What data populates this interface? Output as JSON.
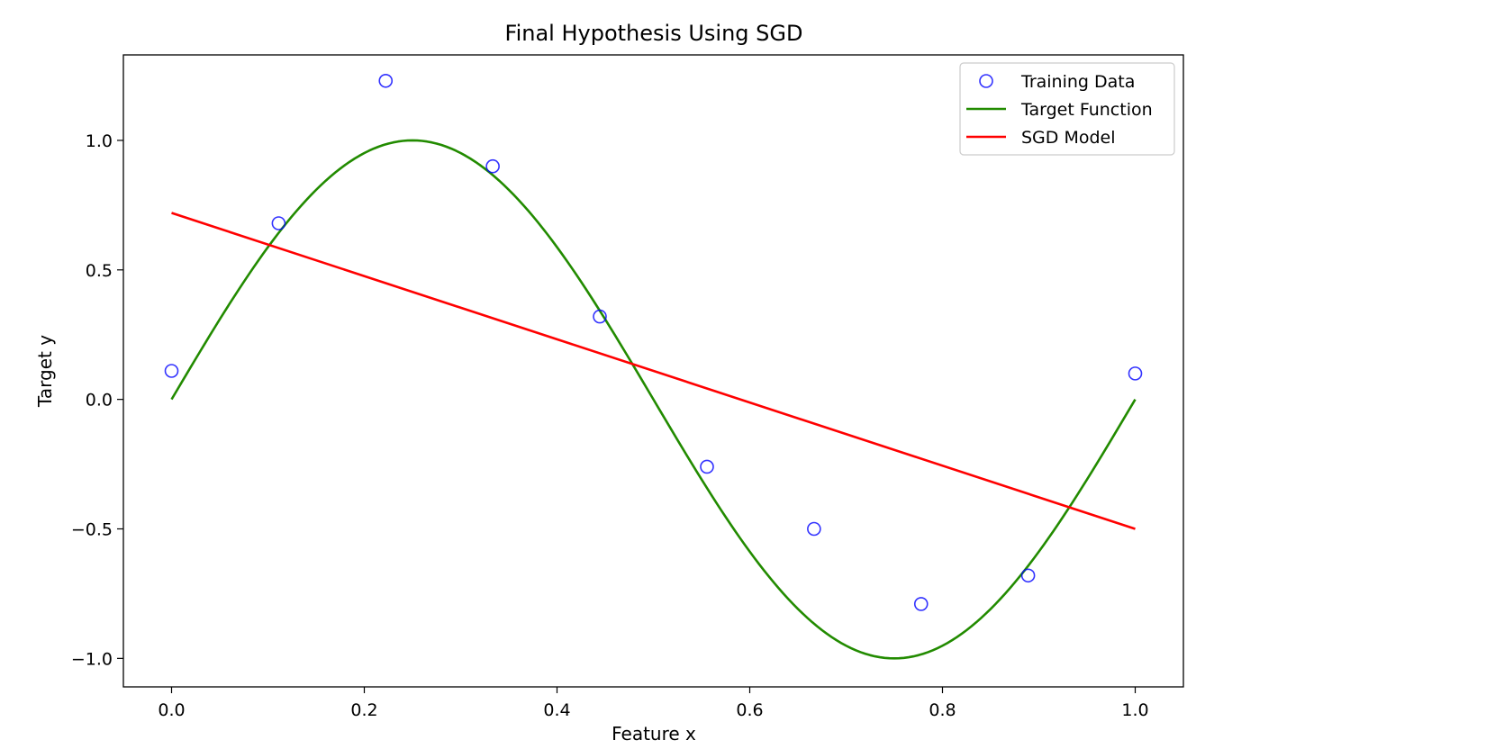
{
  "chart_data": {
    "type": "line",
    "title": "Final Hypothesis Using SGD",
    "xlabel": "Feature x",
    "ylabel": "Target y",
    "xlim": [
      -0.05,
      1.05
    ],
    "ylim": [
      -1.11,
      1.33
    ],
    "x_ticks": [
      0.0,
      0.2,
      0.4,
      0.6,
      0.8,
      1.0
    ],
    "x_tick_labels": [
      "0.0",
      "0.2",
      "0.4",
      "0.6",
      "0.8",
      "1.0"
    ],
    "y_ticks": [
      -1.0,
      -0.5,
      0.0,
      0.5,
      1.0
    ],
    "y_tick_labels": [
      "−1.0",
      "−0.5",
      "0.0",
      "0.5",
      "1.0"
    ],
    "grid": false,
    "legend_position": "top-right",
    "series": [
      {
        "name": "Training Data",
        "kind": "scatter",
        "marker": "hollow-circle",
        "color": "#0000ff",
        "x": [
          0.0,
          0.1111,
          0.2222,
          0.3333,
          0.4444,
          0.5556,
          0.6667,
          0.7778,
          0.8889,
          1.0
        ],
        "y": [
          0.11,
          0.68,
          1.23,
          0.9,
          0.32,
          -0.26,
          -0.5,
          -0.79,
          -0.68,
          0.1
        ]
      },
      {
        "name": "Target Function",
        "kind": "line",
        "function": "sin(2*pi*x)",
        "color": "#228b00",
        "x": [
          0.0,
          0.05,
          0.1,
          0.15,
          0.2,
          0.25,
          0.3,
          0.35,
          0.4,
          0.45,
          0.5,
          0.55,
          0.6,
          0.65,
          0.7,
          0.75,
          0.8,
          0.85,
          0.9,
          0.95,
          1.0
        ],
        "y": [
          0.0,
          0.309,
          0.588,
          0.809,
          0.951,
          1.0,
          0.951,
          0.809,
          0.588,
          0.309,
          0.0,
          -0.309,
          -0.588,
          -0.809,
          -0.951,
          -1.0,
          -0.951,
          -0.809,
          -0.588,
          -0.309,
          0.0
        ]
      },
      {
        "name": "SGD Model",
        "kind": "line",
        "color": "#ff0000",
        "x": [
          0.0,
          1.0
        ],
        "y": [
          0.72,
          -0.5
        ]
      }
    ]
  }
}
